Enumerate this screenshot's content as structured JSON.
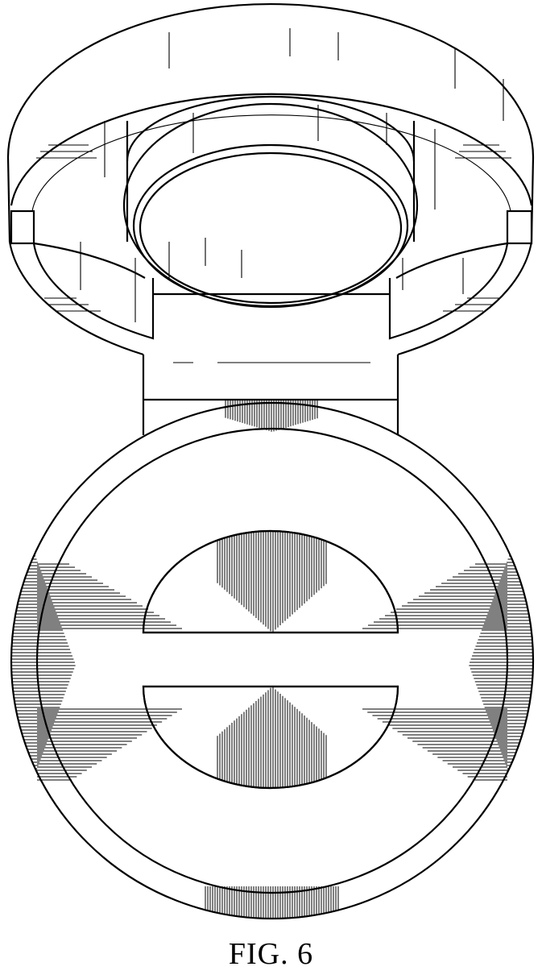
{
  "figure": {
    "caption": "FIG. 6"
  },
  "colors": {
    "line": "#000000",
    "background": "#ffffff"
  }
}
